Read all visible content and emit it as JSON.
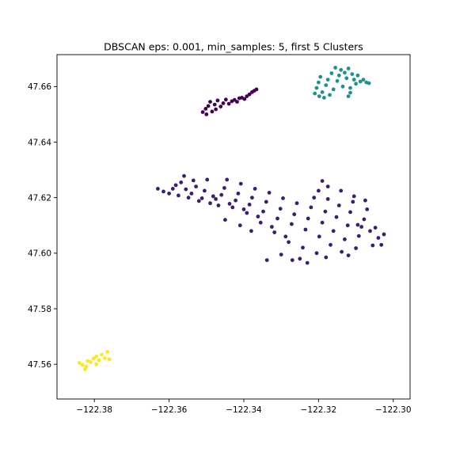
{
  "chart_data": {
    "type": "scatter",
    "title": "DBSCAN eps: 0.001, min_samples: 5, first 5 Clusters",
    "xlabel": "",
    "ylabel": "",
    "xlim": [
      -122.39,
      -122.2955
    ],
    "ylim": [
      47.5475,
      47.6715
    ],
    "grid": false,
    "legend": "none",
    "x_ticks": [
      -122.38,
      -122.36,
      -122.34,
      -122.32,
      -122.3
    ],
    "x_tick_labels": [
      "−122.38",
      "−122.36",
      "−122.34",
      "−122.32",
      "−122.30"
    ],
    "y_ticks": [
      47.56,
      47.58,
      47.6,
      47.62,
      47.64,
      47.66
    ],
    "y_tick_labels": [
      "47.56",
      "47.58",
      "47.60",
      "47.62",
      "47.64",
      "47.66"
    ],
    "series": [
      {
        "color": "#440154",
        "points": [
          [
            -122.351,
            47.6508
          ],
          [
            -122.3502,
            47.652
          ],
          [
            -122.3495,
            47.653
          ],
          [
            -122.349,
            47.6545
          ],
          [
            -122.3485,
            47.651
          ],
          [
            -122.3478,
            47.6535
          ],
          [
            -122.347,
            47.655
          ],
          [
            -122.3462,
            47.6528
          ],
          [
            -122.3455,
            47.654
          ],
          [
            -122.3448,
            47.6553
          ],
          [
            -122.344,
            47.6538
          ],
          [
            -122.3432,
            47.6547
          ],
          [
            -122.3425,
            47.6552
          ],
          [
            -122.3418,
            47.6545
          ],
          [
            -122.3412,
            47.6558
          ],
          [
            -122.3405,
            47.656
          ],
          [
            -122.3398,
            47.6555
          ],
          [
            -122.3392,
            47.6565
          ],
          [
            -122.3385,
            47.6572
          ],
          [
            -122.3378,
            47.658
          ],
          [
            -122.3372,
            47.6585
          ],
          [
            -122.3366,
            47.659
          ],
          [
            -122.35,
            47.65
          ],
          [
            -122.3475,
            47.6518
          ]
        ]
      },
      {
        "color": "#3b1f6e",
        "points": [
          [
            -122.363,
            47.6232
          ],
          [
            -122.3615,
            47.6222
          ],
          [
            -122.36,
            47.6215
          ],
          [
            -122.359,
            47.6232
          ],
          [
            -122.3582,
            47.6245
          ],
          [
            -122.3575,
            47.6208
          ],
          [
            -122.3568,
            47.6255
          ],
          [
            -122.356,
            47.6278
          ],
          [
            -122.3555,
            47.623
          ],
          [
            -122.3548,
            47.62
          ],
          [
            -122.354,
            47.6215
          ],
          [
            -122.3535,
            47.6262
          ],
          [
            -122.3528,
            47.624
          ],
          [
            -122.352,
            47.6188
          ],
          [
            -122.3512,
            47.6198
          ],
          [
            -122.3505,
            47.6225
          ],
          [
            -122.3498,
            47.6265
          ],
          [
            -122.349,
            47.618
          ],
          [
            -122.3482,
            47.6205
          ],
          [
            -122.3475,
            47.6195
          ],
          [
            -122.3468,
            47.6172
          ],
          [
            -122.346,
            47.621
          ],
          [
            -122.3452,
            47.6235
          ],
          [
            -122.3445,
            47.6265
          ],
          [
            -122.3438,
            47.6178
          ],
          [
            -122.343,
            47.6165
          ],
          [
            -122.3422,
            47.619
          ],
          [
            -122.3415,
            47.6215
          ],
          [
            -122.3408,
            47.625
          ],
          [
            -122.34,
            47.6158
          ],
          [
            -122.3392,
            47.6145
          ],
          [
            -122.3385,
            47.6175
          ],
          [
            -122.3378,
            47.62
          ],
          [
            -122.337,
            47.6232
          ],
          [
            -122.3362,
            47.6132
          ],
          [
            -122.3355,
            47.611
          ],
          [
            -122.3348,
            47.615
          ],
          [
            -122.334,
            47.6185
          ],
          [
            -122.3332,
            47.6218
          ],
          [
            -122.3325,
            47.6095
          ],
          [
            -122.3318,
            47.6075
          ],
          [
            -122.331,
            47.6125
          ],
          [
            -122.3302,
            47.616
          ],
          [
            -122.3295,
            47.6198
          ],
          [
            -122.3288,
            47.606
          ],
          [
            -122.328,
            47.604
          ],
          [
            -122.3272,
            47.6105
          ],
          [
            -122.3265,
            47.614
          ],
          [
            -122.3258,
            47.618
          ],
          [
            -122.325,
            47.598
          ],
          [
            -122.3242,
            47.602
          ],
          [
            -122.3235,
            47.6085
          ],
          [
            -122.3228,
            47.6125
          ],
          [
            -122.322,
            47.6165
          ],
          [
            -122.3212,
            47.62
          ],
          [
            -122.3205,
            47.6
          ],
          [
            -122.3198,
            47.606
          ],
          [
            -122.319,
            47.611
          ],
          [
            -122.3182,
            47.615
          ],
          [
            -122.3175,
            47.6195
          ],
          [
            -122.3168,
            47.603
          ],
          [
            -122.316,
            47.608
          ],
          [
            -122.3152,
            47.613
          ],
          [
            -122.3145,
            47.6172
          ],
          [
            -122.3138,
            47.6005
          ],
          [
            -122.313,
            47.605
          ],
          [
            -122.3122,
            47.61
          ],
          [
            -122.3115,
            47.6148
          ],
          [
            -122.3108,
            47.6185
          ],
          [
            -122.31,
            47.6018
          ],
          [
            -122.3092,
            47.6062
          ],
          [
            -122.3085,
            47.6095
          ],
          [
            -122.3078,
            47.6122
          ],
          [
            -122.307,
            47.6158
          ],
          [
            -122.3062,
            47.608
          ],
          [
            -122.3055,
            47.6028
          ],
          [
            -122.3048,
            47.6092
          ],
          [
            -122.304,
            47.6055
          ],
          [
            -122.3032,
            47.603
          ],
          [
            -122.3025,
            47.6068
          ],
          [
            -122.3338,
            47.5975
          ],
          [
            -122.33,
            47.5995
          ],
          [
            -122.323,
            47.5965
          ],
          [
            -122.327,
            47.5975
          ],
          [
            -122.318,
            47.5985
          ],
          [
            -122.312,
            47.5992
          ],
          [
            -122.3095,
            47.6102
          ],
          [
            -122.32,
            47.6225
          ],
          [
            -122.319,
            47.626
          ],
          [
            -122.3175,
            47.624
          ],
          [
            -122.314,
            47.6225
          ],
          [
            -122.3105,
            47.6205
          ],
          [
            -122.3075,
            47.619
          ],
          [
            -122.341,
            47.61
          ],
          [
            -122.338,
            47.608
          ],
          [
            -122.345,
            47.612
          ]
        ]
      },
      {
        "color": "#21918c",
        "points": [
          [
            -122.321,
            47.6575
          ],
          [
            -122.3205,
            47.6595
          ],
          [
            -122.32,
            47.6615
          ],
          [
            -122.3195,
            47.6635
          ],
          [
            -122.319,
            47.658
          ],
          [
            -122.3185,
            47.656
          ],
          [
            -122.318,
            47.6605
          ],
          [
            -122.3175,
            47.6625
          ],
          [
            -122.317,
            47.657
          ],
          [
            -122.3165,
            47.6648
          ],
          [
            -122.316,
            47.659
          ],
          [
            -122.3155,
            47.6668
          ],
          [
            -122.315,
            47.662
          ],
          [
            -122.3145,
            47.664
          ],
          [
            -122.314,
            47.666
          ],
          [
            -122.3135,
            47.66
          ],
          [
            -122.313,
            47.665
          ],
          [
            -122.3125,
            47.663
          ],
          [
            -122.312,
            47.6665
          ],
          [
            -122.3115,
            47.6595
          ],
          [
            -122.311,
            47.6645
          ],
          [
            -122.3105,
            47.6625
          ],
          [
            -122.31,
            47.661
          ],
          [
            -122.3095,
            47.664
          ],
          [
            -122.3088,
            47.6618
          ],
          [
            -122.308,
            47.6625
          ],
          [
            -122.3072,
            47.6615
          ],
          [
            -122.3065,
            47.6612
          ],
          [
            -122.312,
            47.6565
          ],
          [
            -122.3115,
            47.6578
          ],
          [
            -122.3198,
            47.6565
          ]
        ]
      },
      {
        "color": "#fde725",
        "points": [
          [
            -122.384,
            47.5605
          ],
          [
            -122.3832,
            47.5598
          ],
          [
            -122.3825,
            47.5582
          ],
          [
            -122.3818,
            47.5612
          ],
          [
            -122.381,
            47.5608
          ],
          [
            -122.3802,
            47.562
          ],
          [
            -122.3795,
            47.5628
          ],
          [
            -122.3788,
            47.5615
          ],
          [
            -122.378,
            47.5635
          ],
          [
            -122.3772,
            47.5622
          ],
          [
            -122.3765,
            47.5645
          ],
          [
            -122.376,
            47.5618
          ],
          [
            -122.3822,
            47.5592
          ],
          [
            -122.3795,
            47.56
          ]
        ]
      }
    ]
  }
}
